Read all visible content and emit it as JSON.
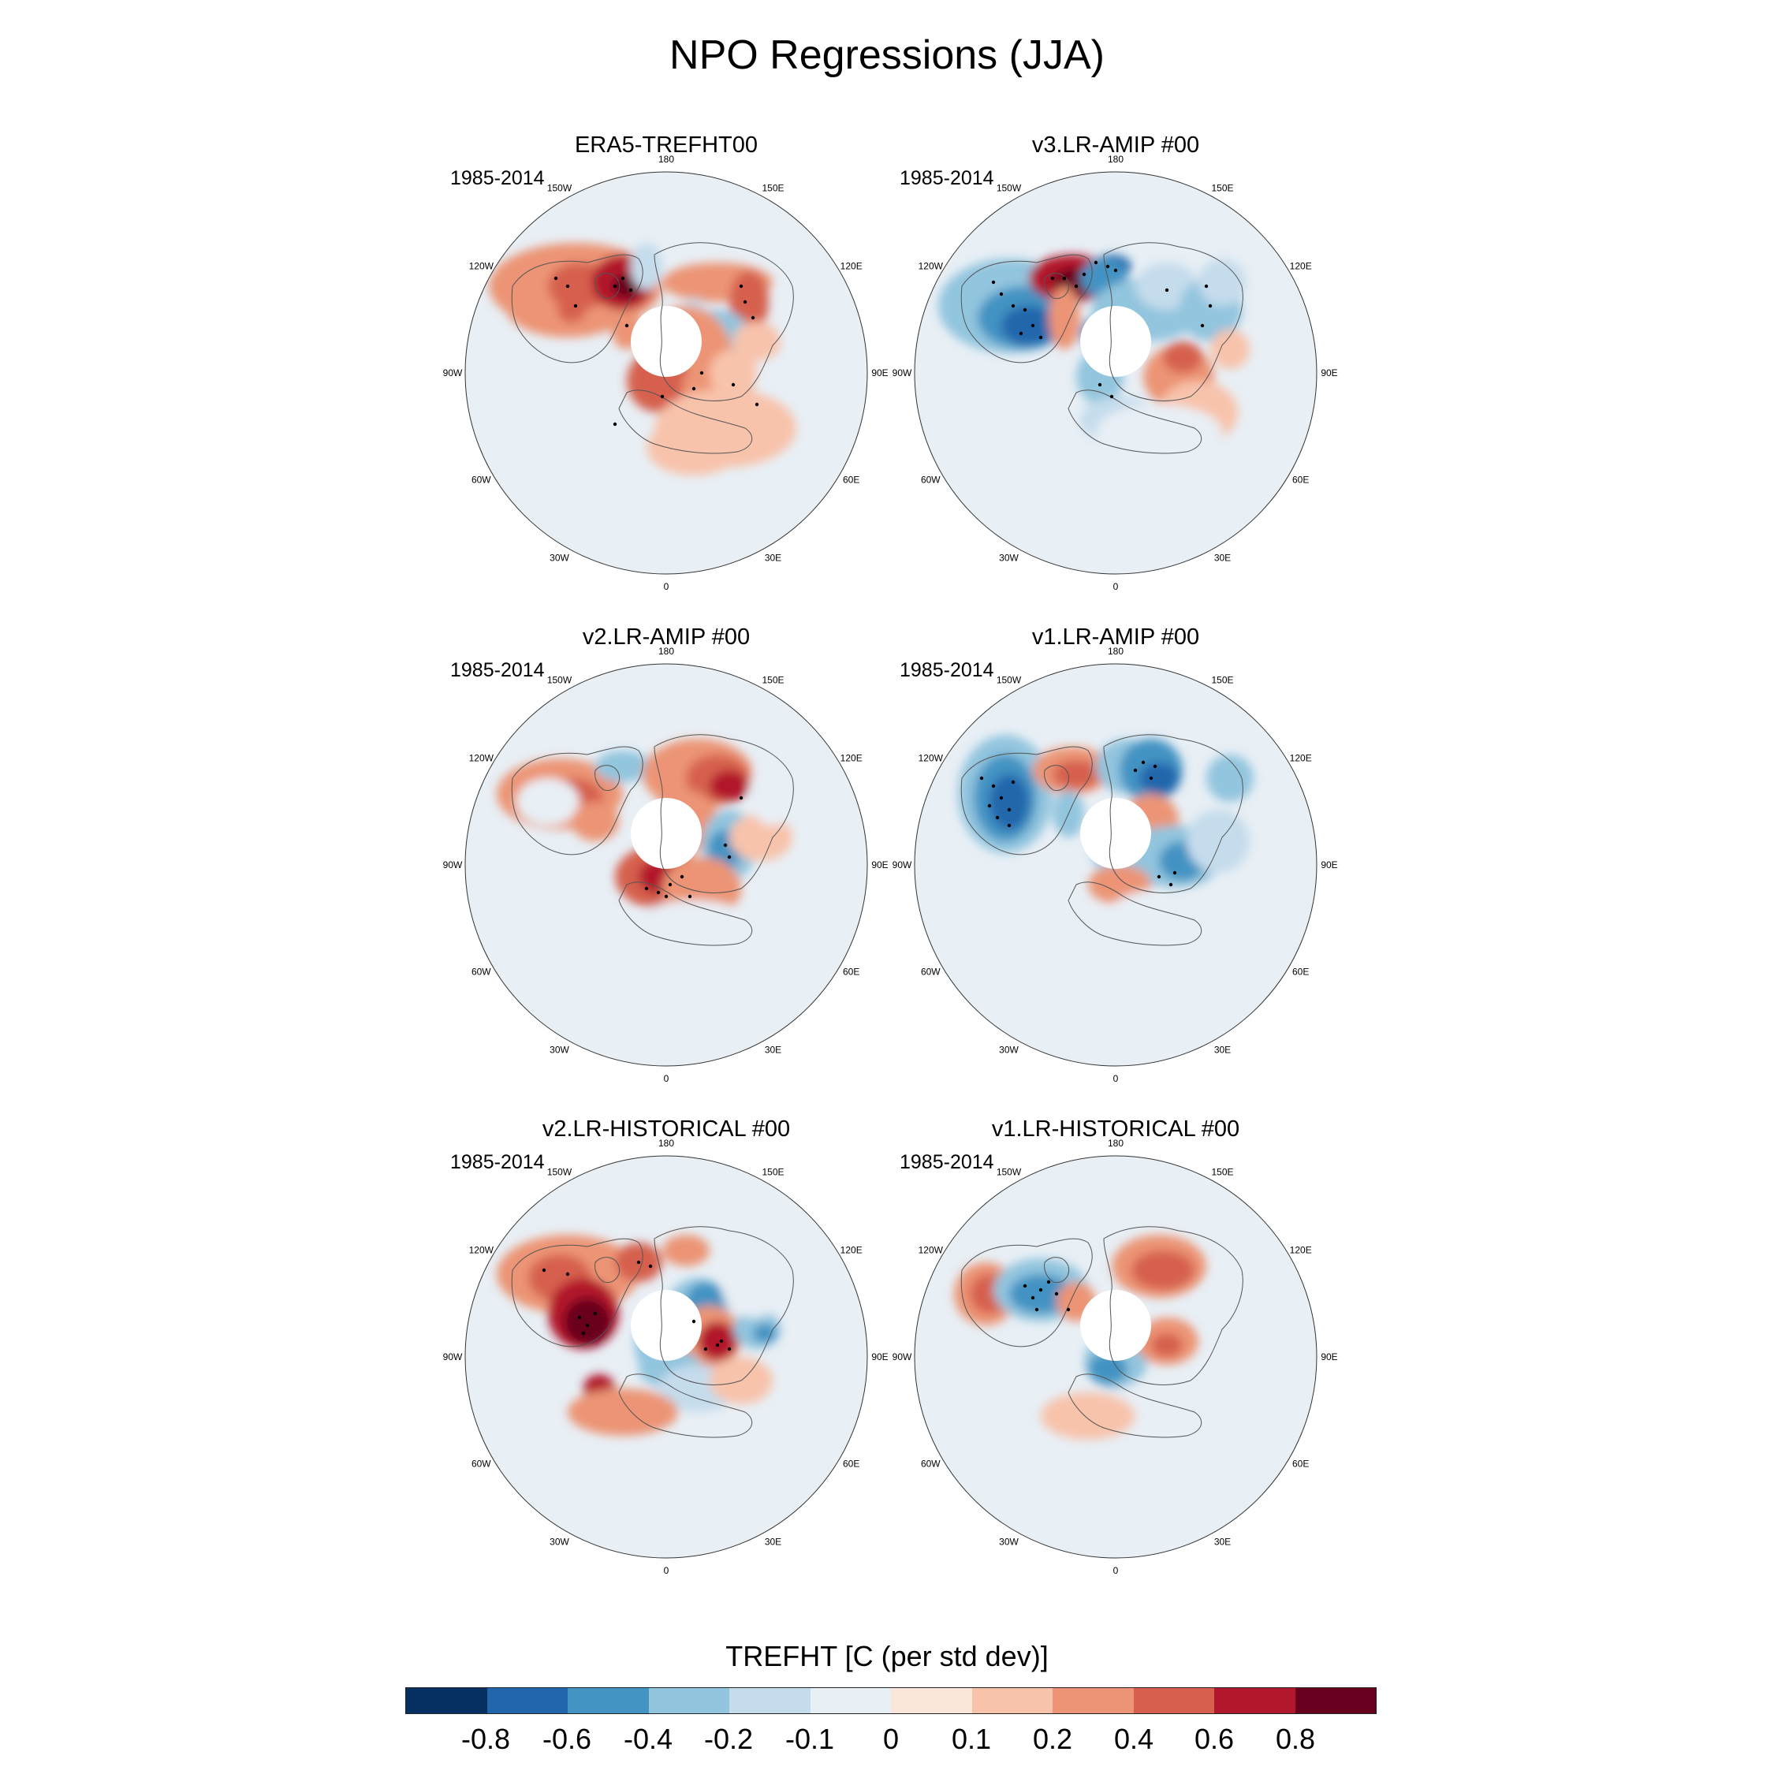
{
  "figure": {
    "title": "NPO Regressions (JJA)"
  },
  "panels": [
    {
      "title": "ERA5-TREFHT00",
      "period": "1985-2014",
      "pattern": "era5"
    },
    {
      "title": "v3.LR-AMIP  #00",
      "period": "1985-2014",
      "pattern": "v3amip"
    },
    {
      "title": "v2.LR-AMIP  #00",
      "period": "1985-2014",
      "pattern": "v2amip"
    },
    {
      "title": "v1.LR-AMIP  #00",
      "period": "1985-2014",
      "pattern": "v1amip"
    },
    {
      "title": "v2.LR-HISTORICAL  #00",
      "period": "1985-2014",
      "pattern": "v2hist"
    },
    {
      "title": "v1.LR-HISTORICAL  #00",
      "period": "1985-2014",
      "pattern": "v1hist"
    }
  ],
  "longitude_labels": [
    "180",
    "150E",
    "120E",
    "90E",
    "60E",
    "30E",
    "0",
    "30W",
    "60W",
    "90W",
    "120W",
    "150W"
  ],
  "colorbar": {
    "title": "TREFHT [C (per std dev)]",
    "tick_labels": [
      "-0.8",
      "-0.6",
      "-0.4",
      "-0.2",
      "-0.1",
      "0",
      "0.1",
      "0.2",
      "0.4",
      "0.6",
      "0.8"
    ],
    "colors": [
      "#053061",
      "#2166ac",
      "#4393c3",
      "#92c5de",
      "#c5dcec",
      "#e8eff5",
      "#fbe6dc",
      "#f8c3ab",
      "#ec9475",
      "#d6604d",
      "#b2182b",
      "#67001f"
    ]
  }
}
